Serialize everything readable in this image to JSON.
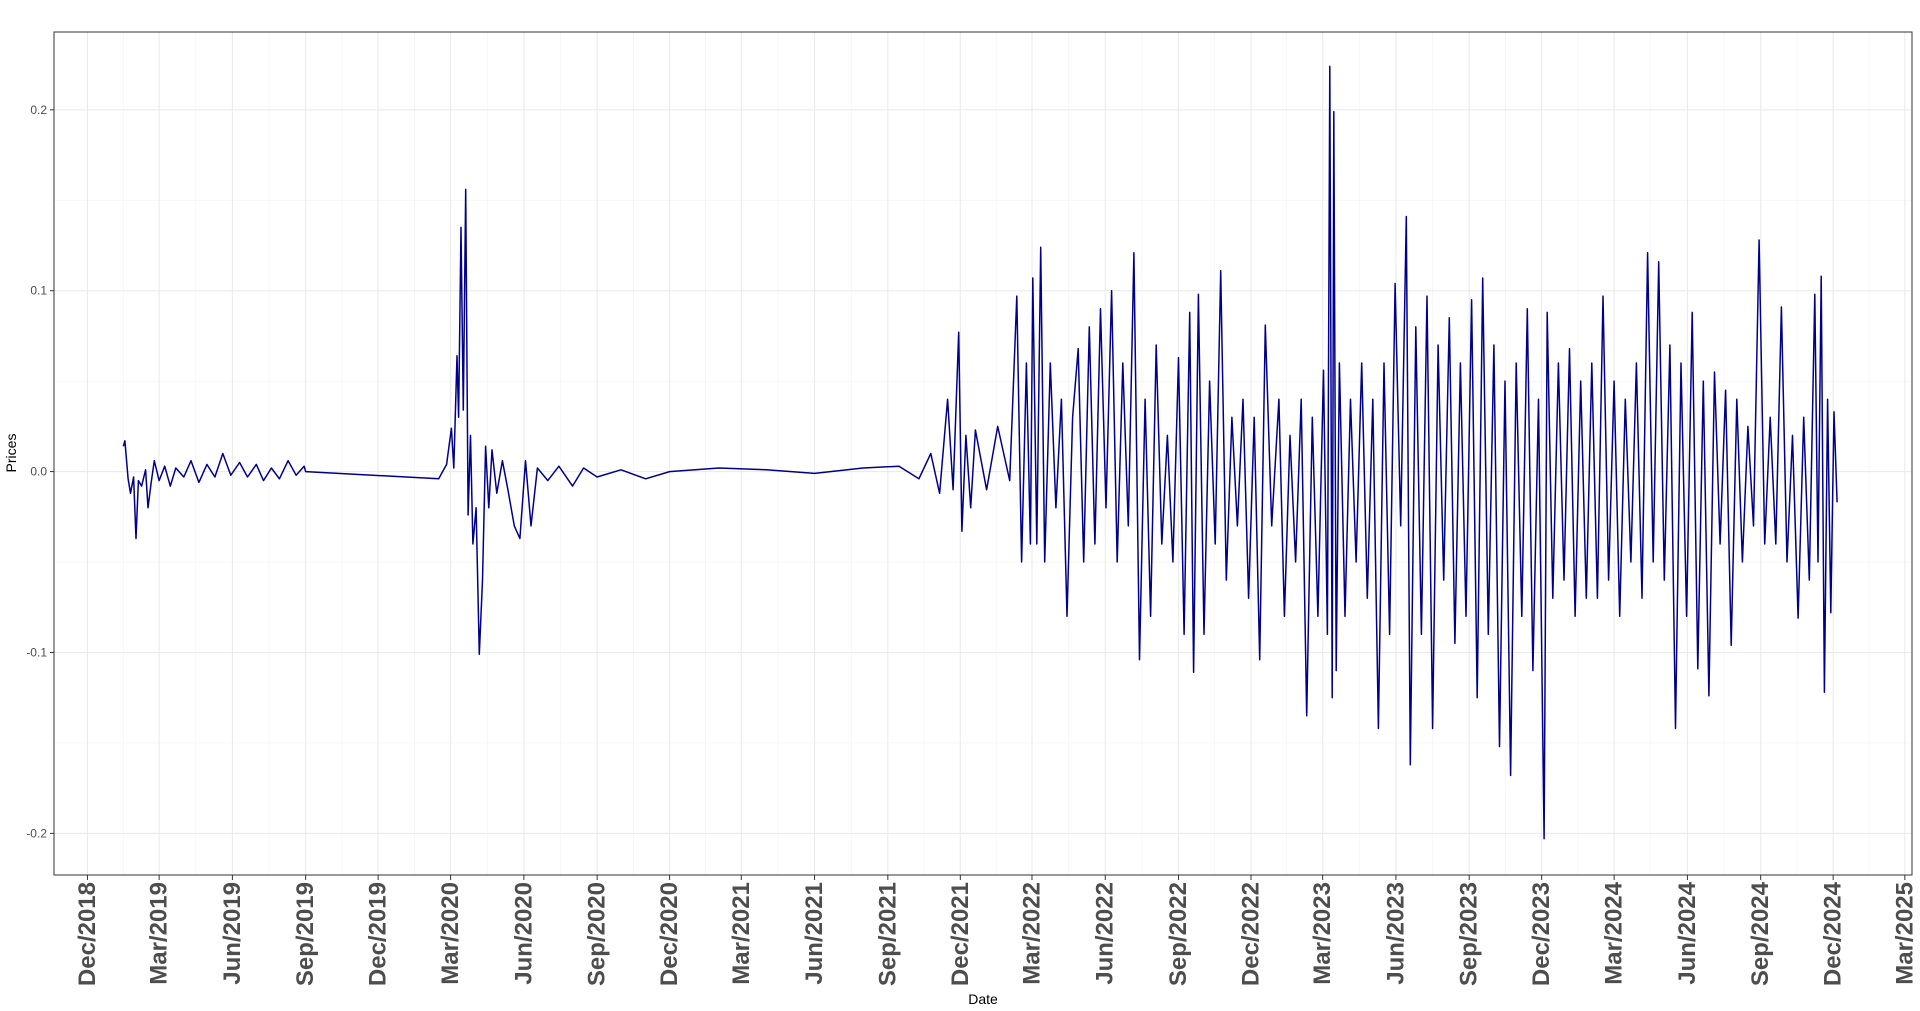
{
  "chart_data": {
    "type": "line",
    "title": "",
    "xlabel": "Date",
    "ylabel": "Prices",
    "xlim": [
      "2018-10-20",
      "2025-03-10"
    ],
    "ylim": [
      -0.223,
      0.243
    ],
    "y_ticks": [
      -0.2,
      -0.1,
      0.0,
      0.1,
      0.2
    ],
    "y_tick_labels": [
      "-0.2",
      "-0.1",
      "0.0",
      "0.1",
      "0.2"
    ],
    "x_ticks": [
      "2018-12-01",
      "2019-03-01",
      "2019-06-01",
      "2019-09-01",
      "2019-12-01",
      "2020-03-01",
      "2020-06-01",
      "2020-09-01",
      "2020-12-01",
      "2021-03-01",
      "2021-06-01",
      "2021-09-01",
      "2021-12-01",
      "2022-03-01",
      "2022-06-01",
      "2022-09-01",
      "2022-12-01",
      "2023-03-01",
      "2023-06-01",
      "2023-09-01",
      "2023-12-01",
      "2024-03-01",
      "2024-06-01",
      "2024-09-01",
      "2024-12-01",
      "2025-03-01"
    ],
    "x_tick_labels": [
      "Dec/2018",
      "Mar/2019",
      "Jun/2019",
      "Sep/2019",
      "Dec/2019",
      "Mar/2020",
      "Jun/2020",
      "Sep/2020",
      "Dec/2020",
      "Mar/2021",
      "Jun/2021",
      "Sep/2021",
      "Dec/2021",
      "Mar/2022",
      "Jun/2022",
      "Sep/2022",
      "Dec/2022",
      "Mar/2023",
      "Jun/2023",
      "Sep/2023",
      "Dec/2023",
      "Mar/2024",
      "Jun/2024",
      "Sep/2024",
      "Dec/2024",
      "Mar/2025"
    ],
    "grid": true,
    "legend": "none",
    "series": [
      {
        "color": "#00008B",
        "points": [
          [
            "2019-01-15",
            0.014
          ],
          [
            "2019-01-17",
            0.017
          ],
          [
            "2019-01-21",
            -0.004
          ],
          [
            "2019-01-24",
            -0.012
          ],
          [
            "2019-01-28",
            -0.003
          ],
          [
            "2019-01-31",
            -0.037
          ],
          [
            "2019-02-03",
            -0.005
          ],
          [
            "2019-02-07",
            -0.008
          ],
          [
            "2019-02-12",
            0.001
          ],
          [
            "2019-02-15",
            -0.02
          ],
          [
            "2019-02-19",
            -0.006
          ],
          [
            "2019-02-23",
            0.006
          ],
          [
            "2019-03-01",
            -0.005
          ],
          [
            "2019-03-08",
            0.003
          ],
          [
            "2019-03-15",
            -0.008
          ],
          [
            "2019-03-22",
            0.002
          ],
          [
            "2019-04-01",
            -0.003
          ],
          [
            "2019-04-10",
            0.006
          ],
          [
            "2019-04-20",
            -0.006
          ],
          [
            "2019-04-30",
            0.004
          ],
          [
            "2019-05-10",
            -0.003
          ],
          [
            "2019-05-20",
            0.01
          ],
          [
            "2019-05-30",
            -0.002
          ],
          [
            "2019-06-10",
            0.005
          ],
          [
            "2019-06-20",
            -0.003
          ],
          [
            "2019-07-01",
            0.004
          ],
          [
            "2019-07-10",
            -0.005
          ],
          [
            "2019-07-20",
            0.002
          ],
          [
            "2019-07-30",
            -0.004
          ],
          [
            "2019-08-10",
            0.006
          ],
          [
            "2019-08-20",
            -0.002
          ],
          [
            "2019-08-30",
            0.003
          ],
          [
            "2019-09-01",
            0.0
          ],
          [
            "2020-02-15",
            -0.004
          ],
          [
            "2020-02-20",
            0.0
          ],
          [
            "2020-02-25",
            0.004
          ],
          [
            "2020-03-02",
            0.024
          ],
          [
            "2020-03-05",
            0.002
          ],
          [
            "2020-03-09",
            0.064
          ],
          [
            "2020-03-11",
            0.03
          ],
          [
            "2020-03-14",
            0.135
          ],
          [
            "2020-03-17",
            0.034
          ],
          [
            "2020-03-20",
            0.156
          ],
          [
            "2020-03-23",
            -0.024
          ],
          [
            "2020-03-26",
            0.02
          ],
          [
            "2020-03-29",
            -0.04
          ],
          [
            "2020-04-02",
            -0.02
          ],
          [
            "2020-04-06",
            -0.101
          ],
          [
            "2020-04-10",
            -0.06
          ],
          [
            "2020-04-14",
            0.014
          ],
          [
            "2020-04-18",
            -0.02
          ],
          [
            "2020-04-22",
            0.012
          ],
          [
            "2020-04-28",
            -0.012
          ],
          [
            "2020-05-05",
            0.006
          ],
          [
            "2020-05-12",
            -0.01
          ],
          [
            "2020-05-20",
            -0.03
          ],
          [
            "2020-05-27",
            -0.037
          ],
          [
            "2020-06-03",
            0.006
          ],
          [
            "2020-06-10",
            -0.03
          ],
          [
            "2020-06-18",
            0.002
          ],
          [
            "2020-07-01",
            -0.005
          ],
          [
            "2020-07-15",
            0.003
          ],
          [
            "2020-08-01",
            -0.008
          ],
          [
            "2020-08-15",
            0.002
          ],
          [
            "2020-09-01",
            -0.003
          ],
          [
            "2020-10-01",
            0.001
          ],
          [
            "2020-11-01",
            -0.004
          ],
          [
            "2020-12-01",
            0.0
          ],
          [
            "2021-02-01",
            0.002
          ],
          [
            "2021-04-01",
            0.001
          ],
          [
            "2021-06-01",
            -0.001
          ],
          [
            "2021-08-01",
            0.002
          ],
          [
            "2021-09-15",
            0.003
          ],
          [
            "2021-10-10",
            -0.004
          ],
          [
            "2021-10-25",
            0.01
          ],
          [
            "2021-11-05",
            -0.012
          ],
          [
            "2021-11-15",
            0.04
          ],
          [
            "2021-11-22",
            -0.01
          ],
          [
            "2021-11-29",
            0.077
          ],
          [
            "2021-12-03",
            -0.033
          ],
          [
            "2021-12-08",
            0.02
          ],
          [
            "2021-12-14",
            -0.02
          ],
          [
            "2021-12-20",
            0.023
          ],
          [
            "2022-01-03",
            -0.01
          ],
          [
            "2022-01-17",
            0.025
          ],
          [
            "2022-02-01",
            -0.005
          ],
          [
            "2022-02-10",
            0.097
          ],
          [
            "2022-02-16",
            -0.05
          ],
          [
            "2022-02-22",
            0.06
          ],
          [
            "2022-02-27",
            -0.04
          ],
          [
            "2022-03-02",
            0.107
          ],
          [
            "2022-03-07",
            -0.04
          ],
          [
            "2022-03-12",
            0.124
          ],
          [
            "2022-03-17",
            -0.05
          ],
          [
            "2022-03-24",
            0.06
          ],
          [
            "2022-03-31",
            -0.02
          ],
          [
            "2022-04-07",
            0.04
          ],
          [
            "2022-04-14",
            -0.08
          ],
          [
            "2022-04-21",
            0.03
          ],
          [
            "2022-04-28",
            0.068
          ],
          [
            "2022-05-05",
            -0.05
          ],
          [
            "2022-05-12",
            0.08
          ],
          [
            "2022-05-19",
            -0.04
          ],
          [
            "2022-05-26",
            0.09
          ],
          [
            "2022-06-02",
            -0.02
          ],
          [
            "2022-06-09",
            0.1
          ],
          [
            "2022-06-16",
            -0.05
          ],
          [
            "2022-06-23",
            0.06
          ],
          [
            "2022-06-30",
            -0.03
          ],
          [
            "2022-07-07",
            0.121
          ],
          [
            "2022-07-14",
            -0.104
          ],
          [
            "2022-07-21",
            0.04
          ],
          [
            "2022-07-28",
            -0.08
          ],
          [
            "2022-08-04",
            0.07
          ],
          [
            "2022-08-11",
            -0.04
          ],
          [
            "2022-08-18",
            0.02
          ],
          [
            "2022-08-25",
            -0.05
          ],
          [
            "2022-09-01",
            0.063
          ],
          [
            "2022-09-08",
            -0.09
          ],
          [
            "2022-09-15",
            0.088
          ],
          [
            "2022-09-20",
            -0.111
          ],
          [
            "2022-09-26",
            0.098
          ],
          [
            "2022-10-03",
            -0.09
          ],
          [
            "2022-10-10",
            0.05
          ],
          [
            "2022-10-17",
            -0.04
          ],
          [
            "2022-10-24",
            0.111
          ],
          [
            "2022-10-31",
            -0.06
          ],
          [
            "2022-11-07",
            0.03
          ],
          [
            "2022-11-14",
            -0.03
          ],
          [
            "2022-11-21",
            0.04
          ],
          [
            "2022-11-28",
            -0.07
          ],
          [
            "2022-12-05",
            0.03
          ],
          [
            "2022-12-12",
            -0.104
          ],
          [
            "2022-12-19",
            0.081
          ],
          [
            "2022-12-27",
            -0.03
          ],
          [
            "2023-01-05",
            0.04
          ],
          [
            "2023-01-12",
            -0.08
          ],
          [
            "2023-01-19",
            0.02
          ],
          [
            "2023-01-26",
            -0.05
          ],
          [
            "2023-02-02",
            0.04
          ],
          [
            "2023-02-09",
            -0.135
          ],
          [
            "2023-02-16",
            0.03
          ],
          [
            "2023-02-23",
            -0.08
          ],
          [
            "2023-03-02",
            0.056
          ],
          [
            "2023-03-07",
            -0.09
          ],
          [
            "2023-03-10",
            0.224
          ],
          [
            "2023-03-13",
            -0.125
          ],
          [
            "2023-03-15",
            0.199
          ],
          [
            "2023-03-18",
            -0.11
          ],
          [
            "2023-03-22",
            0.06
          ],
          [
            "2023-03-29",
            -0.08
          ],
          [
            "2023-04-05",
            0.04
          ],
          [
            "2023-04-12",
            -0.05
          ],
          [
            "2023-04-19",
            0.06
          ],
          [
            "2023-04-26",
            -0.07
          ],
          [
            "2023-05-03",
            0.04
          ],
          [
            "2023-05-10",
            -0.142
          ],
          [
            "2023-05-17",
            0.06
          ],
          [
            "2023-05-24",
            -0.09
          ],
          [
            "2023-05-31",
            0.104
          ],
          [
            "2023-06-07",
            -0.03
          ],
          [
            "2023-06-14",
            0.141
          ],
          [
            "2023-06-19",
            -0.162
          ],
          [
            "2023-06-26",
            0.08
          ],
          [
            "2023-07-03",
            -0.09
          ],
          [
            "2023-07-10",
            0.097
          ],
          [
            "2023-07-17",
            -0.142
          ],
          [
            "2023-07-24",
            0.07
          ],
          [
            "2023-07-31",
            -0.06
          ],
          [
            "2023-08-07",
            0.085
          ],
          [
            "2023-08-14",
            -0.095
          ],
          [
            "2023-08-21",
            0.06
          ],
          [
            "2023-08-28",
            -0.08
          ],
          [
            "2023-09-04",
            0.095
          ],
          [
            "2023-09-11",
            -0.125
          ],
          [
            "2023-09-18",
            0.107
          ],
          [
            "2023-09-25",
            -0.09
          ],
          [
            "2023-10-02",
            0.07
          ],
          [
            "2023-10-09",
            -0.152
          ],
          [
            "2023-10-16",
            0.05
          ],
          [
            "2023-10-23",
            -0.168
          ],
          [
            "2023-10-30",
            0.06
          ],
          [
            "2023-11-06",
            -0.08
          ],
          [
            "2023-11-13",
            0.09
          ],
          [
            "2023-11-20",
            -0.11
          ],
          [
            "2023-11-27",
            0.04
          ],
          [
            "2023-12-04",
            -0.203
          ],
          [
            "2023-12-08",
            0.088
          ],
          [
            "2023-12-15",
            -0.07
          ],
          [
            "2023-12-22",
            0.06
          ],
          [
            "2023-12-29",
            -0.06
          ],
          [
            "2024-01-05",
            0.068
          ],
          [
            "2024-01-12",
            -0.08
          ],
          [
            "2024-01-19",
            0.05
          ],
          [
            "2024-01-26",
            -0.07
          ],
          [
            "2024-02-02",
            0.06
          ],
          [
            "2024-02-09",
            -0.07
          ],
          [
            "2024-02-16",
            0.097
          ],
          [
            "2024-02-23",
            -0.06
          ],
          [
            "2024-03-01",
            0.05
          ],
          [
            "2024-03-08",
            -0.08
          ],
          [
            "2024-03-15",
            0.04
          ],
          [
            "2024-03-22",
            -0.05
          ],
          [
            "2024-03-29",
            0.06
          ],
          [
            "2024-04-05",
            -0.07
          ],
          [
            "2024-04-12",
            0.121
          ],
          [
            "2024-04-19",
            -0.05
          ],
          [
            "2024-04-26",
            0.116
          ],
          [
            "2024-05-03",
            -0.06
          ],
          [
            "2024-05-10",
            0.07
          ],
          [
            "2024-05-17",
            -0.142
          ],
          [
            "2024-05-24",
            0.06
          ],
          [
            "2024-05-31",
            -0.08
          ],
          [
            "2024-06-07",
            0.088
          ],
          [
            "2024-06-14",
            -0.109
          ],
          [
            "2024-06-21",
            0.05
          ],
          [
            "2024-06-28",
            -0.124
          ],
          [
            "2024-07-05",
            0.055
          ],
          [
            "2024-07-12",
            -0.04
          ],
          [
            "2024-07-19",
            0.045
          ],
          [
            "2024-07-26",
            -0.096
          ],
          [
            "2024-08-02",
            0.04
          ],
          [
            "2024-08-09",
            -0.05
          ],
          [
            "2024-08-16",
            0.025
          ],
          [
            "2024-08-23",
            -0.03
          ],
          [
            "2024-08-30",
            0.128
          ],
          [
            "2024-09-06",
            -0.04
          ],
          [
            "2024-09-13",
            0.03
          ],
          [
            "2024-09-20",
            -0.04
          ],
          [
            "2024-09-27",
            0.091
          ],
          [
            "2024-10-04",
            -0.05
          ],
          [
            "2024-10-11",
            0.02
          ],
          [
            "2024-10-18",
            -0.081
          ],
          [
            "2024-10-25",
            0.03
          ],
          [
            "2024-11-01",
            -0.06
          ],
          [
            "2024-11-08",
            0.098
          ],
          [
            "2024-11-12",
            -0.05
          ],
          [
            "2024-11-16",
            0.108
          ],
          [
            "2024-11-20",
            -0.122
          ],
          [
            "2024-11-24",
            0.04
          ],
          [
            "2024-11-28",
            -0.078
          ],
          [
            "2024-12-02",
            0.033
          ],
          [
            "2024-12-06",
            -0.017
          ]
        ]
      }
    ]
  }
}
